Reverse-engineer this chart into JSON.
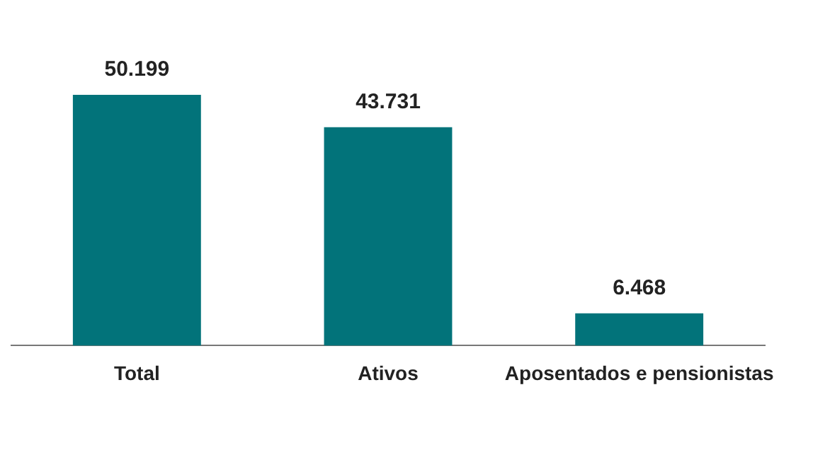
{
  "chart_data": {
    "type": "bar",
    "categories": [
      "Total",
      "Ativos",
      "Aposentados e pensionistas"
    ],
    "values": [
      50199,
      43731,
      6468
    ],
    "color": "#02737a",
    "value_labels": [
      "50.199",
      "43.731",
      "6.468"
    ],
    "grid": false,
    "legend": false,
    "tick_labels": "x"
  }
}
